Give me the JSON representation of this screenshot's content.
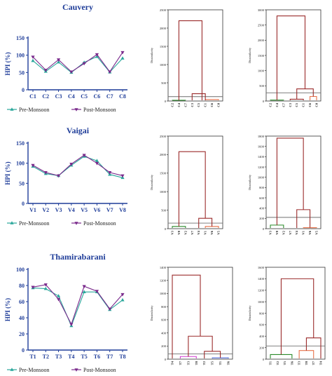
{
  "colors": {
    "pre": "#2aa79b",
    "post": "#7a2a8c",
    "axis": "#1f3d99",
    "dendro": "#9b2b2b",
    "green": "#2a8a2a",
    "orange": "#e8724a",
    "magenta": "#d23fd2",
    "blue": "#3b5bd8",
    "cut": "#6f6f6f"
  },
  "chart_data": [
    {
      "type": "line",
      "title": "Cauvery",
      "ylabel": "HPI (%)",
      "categories": [
        "C1",
        "C2",
        "C3",
        "C4",
        "C5",
        "C6",
        "C7",
        "C8"
      ],
      "ylim": [
        0,
        150
      ],
      "yticks": [
        0,
        50,
        100,
        150
      ],
      "series": [
        {
          "name": "Pre-Monsoon",
          "values": [
            84,
            53,
            80,
            50,
            79,
            96,
            51,
            91
          ]
        },
        {
          "name": "Post-Monsoon",
          "values": [
            95,
            57,
            87,
            52,
            76,
            102,
            52,
            108
          ]
        }
      ]
    },
    {
      "type": "line",
      "title": "Vaigai",
      "ylabel": "HPI (%)",
      "categories": [
        "V1",
        "V2",
        "V3",
        "V4",
        "V5",
        "V6",
        "V7",
        "V8"
      ],
      "ylim": [
        0,
        150
      ],
      "yticks": [
        0,
        50,
        100,
        150
      ],
      "series": [
        {
          "name": "Pre-Monsoon",
          "values": [
            92,
            74,
            69,
            95,
            117,
            106,
            72,
            64
          ]
        },
        {
          "name": "Post-Monsoon",
          "values": [
            95,
            77,
            69,
            98,
            120,
            100,
            77,
            69
          ]
        }
      ]
    },
    {
      "type": "line",
      "title": "Thamirabarani",
      "ylabel": "HPI (%)",
      "categories": [
        "T1",
        "T2",
        "T3",
        "T4",
        "T5",
        "T6",
        "T7",
        "T8"
      ],
      "ylim": [
        0,
        100
      ],
      "yticks": [
        0,
        20,
        40,
        60,
        80,
        100
      ],
      "series": [
        {
          "name": "Pre-Monsoon",
          "values": [
            77,
            76,
            67,
            30,
            72,
            72,
            50,
            62
          ]
        },
        {
          "name": "Post-Monsoon",
          "values": [
            78,
            81,
            63,
            32,
            79,
            73,
            51,
            69
          ]
        }
      ]
    },
    {
      "type": "dendrogram",
      "ylabel": "Dissimilarity",
      "yticks": [
        0,
        500,
        1000,
        1500,
        2000,
        2500
      ],
      "ymax": 2500,
      "leaves": [
        "C2",
        "C4",
        "C7",
        "C3",
        "C5",
        "C1",
        "C6",
        "C8"
      ],
      "cut": 120,
      "links": [
        {
          "a": 0,
          "b": 2,
          "h": 20,
          "color": "green"
        },
        {
          "a": 5,
          "b": 7,
          "h": 40,
          "color": "orange"
        },
        {
          "a": 3,
          "b": 5,
          "h": 200,
          "color": "dendro"
        },
        {
          "a": 1,
          "b": 4.5,
          "h": 2200,
          "color": "dendro"
        }
      ]
    },
    {
      "type": "dendrogram",
      "ylabel": "Dissimilarity",
      "yticks": [
        0,
        500,
        1000,
        1500,
        2000,
        2500,
        3000
      ],
      "ymax": 3000,
      "leaves": [
        "C2",
        "C4",
        "C7",
        "C3",
        "C5",
        "C1",
        "C6",
        "C8"
      ],
      "cut": 270,
      "links": [
        {
          "a": 0,
          "b": 2,
          "h": 30,
          "color": "green"
        },
        {
          "a": 3,
          "b": 5,
          "h": 60,
          "color": "dendro"
        },
        {
          "a": 6,
          "b": 7,
          "h": 150,
          "color": "orange"
        },
        {
          "a": 4,
          "b": 6.5,
          "h": 400,
          "color": "dendro"
        },
        {
          "a": 1,
          "b": 5.25,
          "h": 2800,
          "color": "dendro"
        }
      ]
    },
    {
      "type": "dendrogram",
      "ylabel": "Dissimilarity",
      "yticks": [
        0,
        500,
        1000,
        1500,
        2000,
        2500
      ],
      "ymax": 2500,
      "leaves": [
        "V3",
        "V8",
        "V2",
        "V7",
        "V4",
        "V1",
        "V6",
        "V5"
      ],
      "cut": 150,
      "links": [
        {
          "a": 0,
          "b": 2,
          "h": 60,
          "color": "green"
        },
        {
          "a": 5,
          "b": 7,
          "h": 60,
          "color": "orange"
        },
        {
          "a": 4,
          "b": 6,
          "h": 280,
          "color": "dendro"
        },
        {
          "a": 1,
          "b": 5,
          "h": 2080,
          "color": "dendro"
        }
      ]
    },
    {
      "type": "dendrogram",
      "ylabel": "Dissimilarity",
      "yticks": [
        0,
        200,
        400,
        600,
        800,
        1000,
        1200,
        1400,
        1600,
        1800
      ],
      "ymax": 1800,
      "leaves": [
        "V3",
        "V8",
        "V2",
        "V7",
        "V4",
        "V1",
        "V6",
        "V5"
      ],
      "cut": 220,
      "links": [
        {
          "a": 0,
          "b": 2,
          "h": 70,
          "color": "green"
        },
        {
          "a": 5,
          "b": 7,
          "h": 20,
          "color": "orange"
        },
        {
          "a": 4,
          "b": 6,
          "h": 370,
          "color": "dendro"
        },
        {
          "a": 1,
          "b": 5,
          "h": 1760,
          "color": "dendro"
        }
      ]
    },
    {
      "type": "dendrogram",
      "ylabel": "Dissimilarity",
      "yticks": [
        0,
        200,
        400,
        600,
        800,
        1000,
        1200,
        1400
      ],
      "ymax": 1400,
      "leaves": [
        "T4",
        "T7",
        "T3",
        "T8",
        "T2",
        "T5",
        "T1",
        "T6"
      ],
      "cut": 80,
      "links": [
        {
          "a": 1,
          "b": 3,
          "h": 40,
          "color": "magenta"
        },
        {
          "a": 5,
          "b": 7,
          "h": 20,
          "color": "blue"
        },
        {
          "a": 4,
          "b": 6,
          "h": 120,
          "color": "dendro"
        },
        {
          "a": 2,
          "b": 5,
          "h": 350,
          "color": "dendro"
        },
        {
          "a": 0,
          "b": 3.5,
          "h": 1280,
          "color": "dendro"
        }
      ]
    },
    {
      "type": "dendrogram",
      "ylabel": "Dissimilarity",
      "yticks": [
        0,
        200,
        400,
        600,
        800,
        1000,
        1200,
        1400,
        1600
      ],
      "ymax": 1600,
      "leaves": [
        "T1",
        "T2",
        "T5",
        "T6",
        "T3",
        "T8",
        "T7",
        "T4"
      ],
      "cut": 230,
      "links": [
        {
          "a": 0,
          "b": 3,
          "h": 80,
          "color": "green"
        },
        {
          "a": 4,
          "b": 6,
          "h": 150,
          "color": "orange"
        },
        {
          "a": 5,
          "b": 7,
          "h": 370,
          "color": "dendro"
        },
        {
          "a": 1.5,
          "b": 6,
          "h": 1400,
          "color": "dendro"
        }
      ]
    }
  ]
}
